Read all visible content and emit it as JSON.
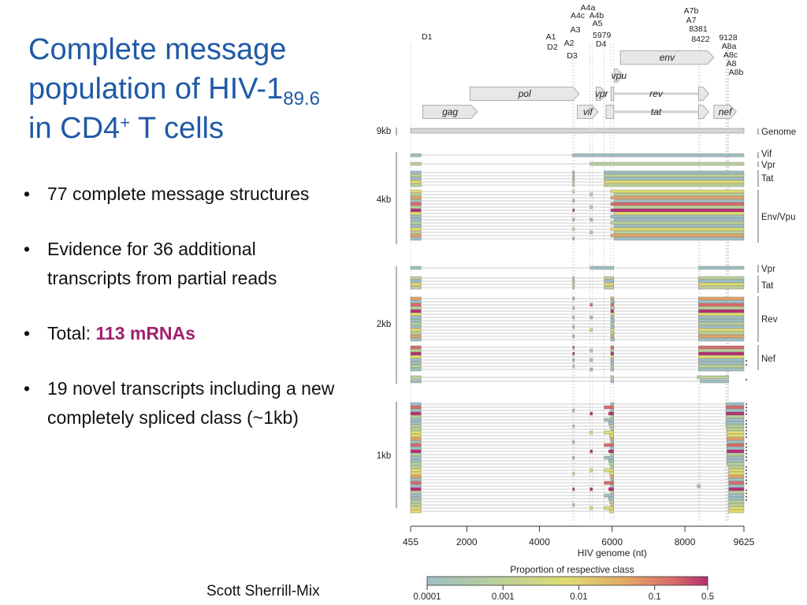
{
  "title": {
    "line1": "Complete message",
    "line2_main": "population of HIV-1",
    "line2_sub": "89.6",
    "line3_pre": "in CD4",
    "line3_sup": "+",
    "line3_post": " T cells"
  },
  "bullets": [
    {
      "text": "77 complete message structures"
    },
    {
      "text": "Evidence for 36 additional transcripts from partial reads"
    },
    {
      "prefix": "Total: ",
      "highlight": "113 mRNAs",
      "highlight_color": "#a02070"
    },
    {
      "text": "19 novel transcripts including a new completely spliced class (~1kb)"
    }
  ],
  "author": "Scott Sherrill-Mix",
  "figure": {
    "splice_sites": [
      {
        "label": "D1",
        "nt": 455
      },
      {
        "label": "A1",
        "nt": 4913
      },
      {
        "label": "D2",
        "nt": 4962
      },
      {
        "label": "A2",
        "nt": 5390
      },
      {
        "label": "D3",
        "nt": 5460
      },
      {
        "label": "A3",
        "nt": 5778
      },
      {
        "label": "A4c",
        "nt": 5940
      },
      {
        "label": "A4a",
        "nt": 5955
      },
      {
        "label": "A4b",
        "nt": 5961
      },
      {
        "label": "A5",
        "nt": 5979
      },
      {
        "label": "5979",
        "nt": 5979
      },
      {
        "label": "D4",
        "nt": 6044
      },
      {
        "label": "A7b",
        "nt": 8358
      },
      {
        "label": "A7",
        "nt": 8375
      },
      {
        "label": "8381",
        "nt": 8381
      },
      {
        "label": "8422",
        "nt": 8422
      },
      {
        "label": "9128",
        "nt": 9128
      },
      {
        "label": "A8a",
        "nt": 9154
      },
      {
        "label": "A8c",
        "nt": 9170
      },
      {
        "label": "A8",
        "nt": 9185
      },
      {
        "label": "A8b",
        "nt": 9205
      }
    ],
    "genes": [
      {
        "name": "gag",
        "start": 790,
        "end": 2292
      },
      {
        "name": "pol",
        "start": 2085,
        "end": 5096
      },
      {
        "name": "vif",
        "start": 5041,
        "end": 5619
      },
      {
        "name": "vpr",
        "start": 5559,
        "end": 5850
      },
      {
        "name": "vpu",
        "start": 6062,
        "end": 6310
      },
      {
        "name": "env",
        "start": 6225,
        "end": 8795
      },
      {
        "name": "nef",
        "start": 8797,
        "end": 9417
      },
      {
        "name": "tat",
        "start": 5830,
        "end": 8469
      },
      {
        "name": "rev",
        "start": 5969,
        "end": 8653
      }
    ],
    "size_classes": [
      "9kb",
      "4kb",
      "2kb",
      "1kb"
    ],
    "message_classes": [
      "Genome",
      "Vif",
      "Vpr",
      "Tat",
      "Env/Vpu",
      "Vpr",
      "Tat",
      "Rev",
      "Nef"
    ],
    "x_axis": {
      "label": "HIV genome (nt)",
      "ticks": [
        "455",
        "2000",
        "4000",
        "6000",
        "8000",
        "9625"
      ]
    },
    "color_scale": {
      "label": "Proportion of respective class",
      "ticks": [
        "0.0001",
        "0.001",
        "0.01",
        "0.1",
        "0.5"
      ],
      "log": true,
      "colors": [
        "#9fbfc2",
        "#b9cf9a",
        "#dfdc70",
        "#e2a466",
        "#d86a6a",
        "#b72d72"
      ]
    }
  }
}
